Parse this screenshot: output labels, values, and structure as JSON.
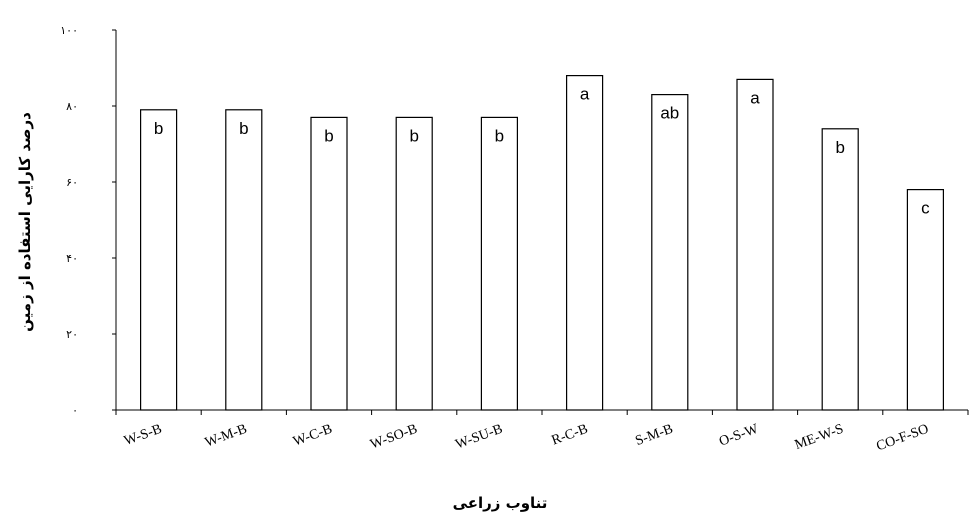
{
  "chart_data": {
    "type": "bar",
    "categories": [
      "W-S-B",
      "W-M-B",
      "W-C-B",
      "W-SO-B",
      "W-SU-B",
      "R-C-B",
      "S-M-B",
      "O-S-W",
      "ME-W-S",
      "CO-F-SO"
    ],
    "values": [
      79,
      79,
      77,
      77,
      77,
      88,
      83,
      87,
      74,
      58
    ],
    "significance_letters": [
      "b",
      "b",
      "b",
      "b",
      "b",
      "a",
      "ab",
      "a",
      "b",
      "c"
    ],
    "xlabel": "تناوب زراعی",
    "ylabel": "درصد کارایی استفاده از زمین",
    "ylim": [
      0,
      100
    ],
    "yticks": [
      0,
      20,
      40,
      60,
      80,
      100
    ],
    "ytick_labels": [
      "۰",
      "۲۰",
      "۴۰",
      "۶۰",
      "۸۰",
      "۱۰۰"
    ],
    "grid": false,
    "legend": "none",
    "bar_fill": "#ffffff",
    "bar_stroke": "#000000"
  }
}
